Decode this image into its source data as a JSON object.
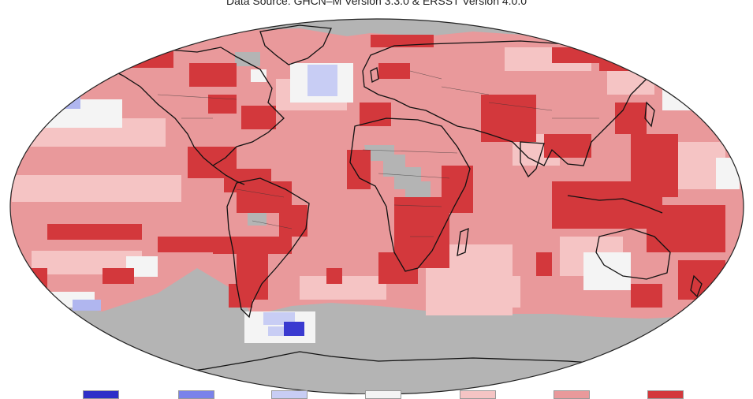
{
  "map": {
    "source_caption": "Data Source: GHCN–M Version 3.3.0 & ERSST Version 4.0.0",
    "colors": {
      "no_data": "#b4b4b4",
      "much_cooler": "#3a3ad0",
      "cooler": "#7a82ea",
      "slightly_cooler": "#c8cdf4",
      "near_average": "#f4f4f4",
      "slightly_warmer": "#f5c4c4",
      "warmer": "#e9999b",
      "much_warmer": "#d3383c",
      "land_outline": "#111111"
    },
    "legend_swatches": [
      {
        "color": "#2f2fc8"
      },
      {
        "color": "#7a82ea"
      },
      {
        "color": "#c8cdf4"
      },
      {
        "color": "#f4f4f4"
      },
      {
        "color": "#f5c4c4"
      },
      {
        "color": "#e9999b"
      },
      {
        "color": "#d3383c"
      }
    ]
  }
}
